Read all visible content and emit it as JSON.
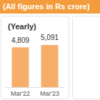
{
  "banner": "(All figures in Rs crore)",
  "chart_data": {
    "type": "bar",
    "title": "(Yearly)",
    "categories": [
      "Mar'22",
      "Mar'23"
    ],
    "values": [
      4809,
      5091
    ],
    "value_labels": [
      "4,809",
      "5,091"
    ],
    "color": "#f6ae6a",
    "ylim": [
      0,
      5600
    ],
    "grid": false,
    "data_labels": true,
    "tick_labels": "x"
  }
}
